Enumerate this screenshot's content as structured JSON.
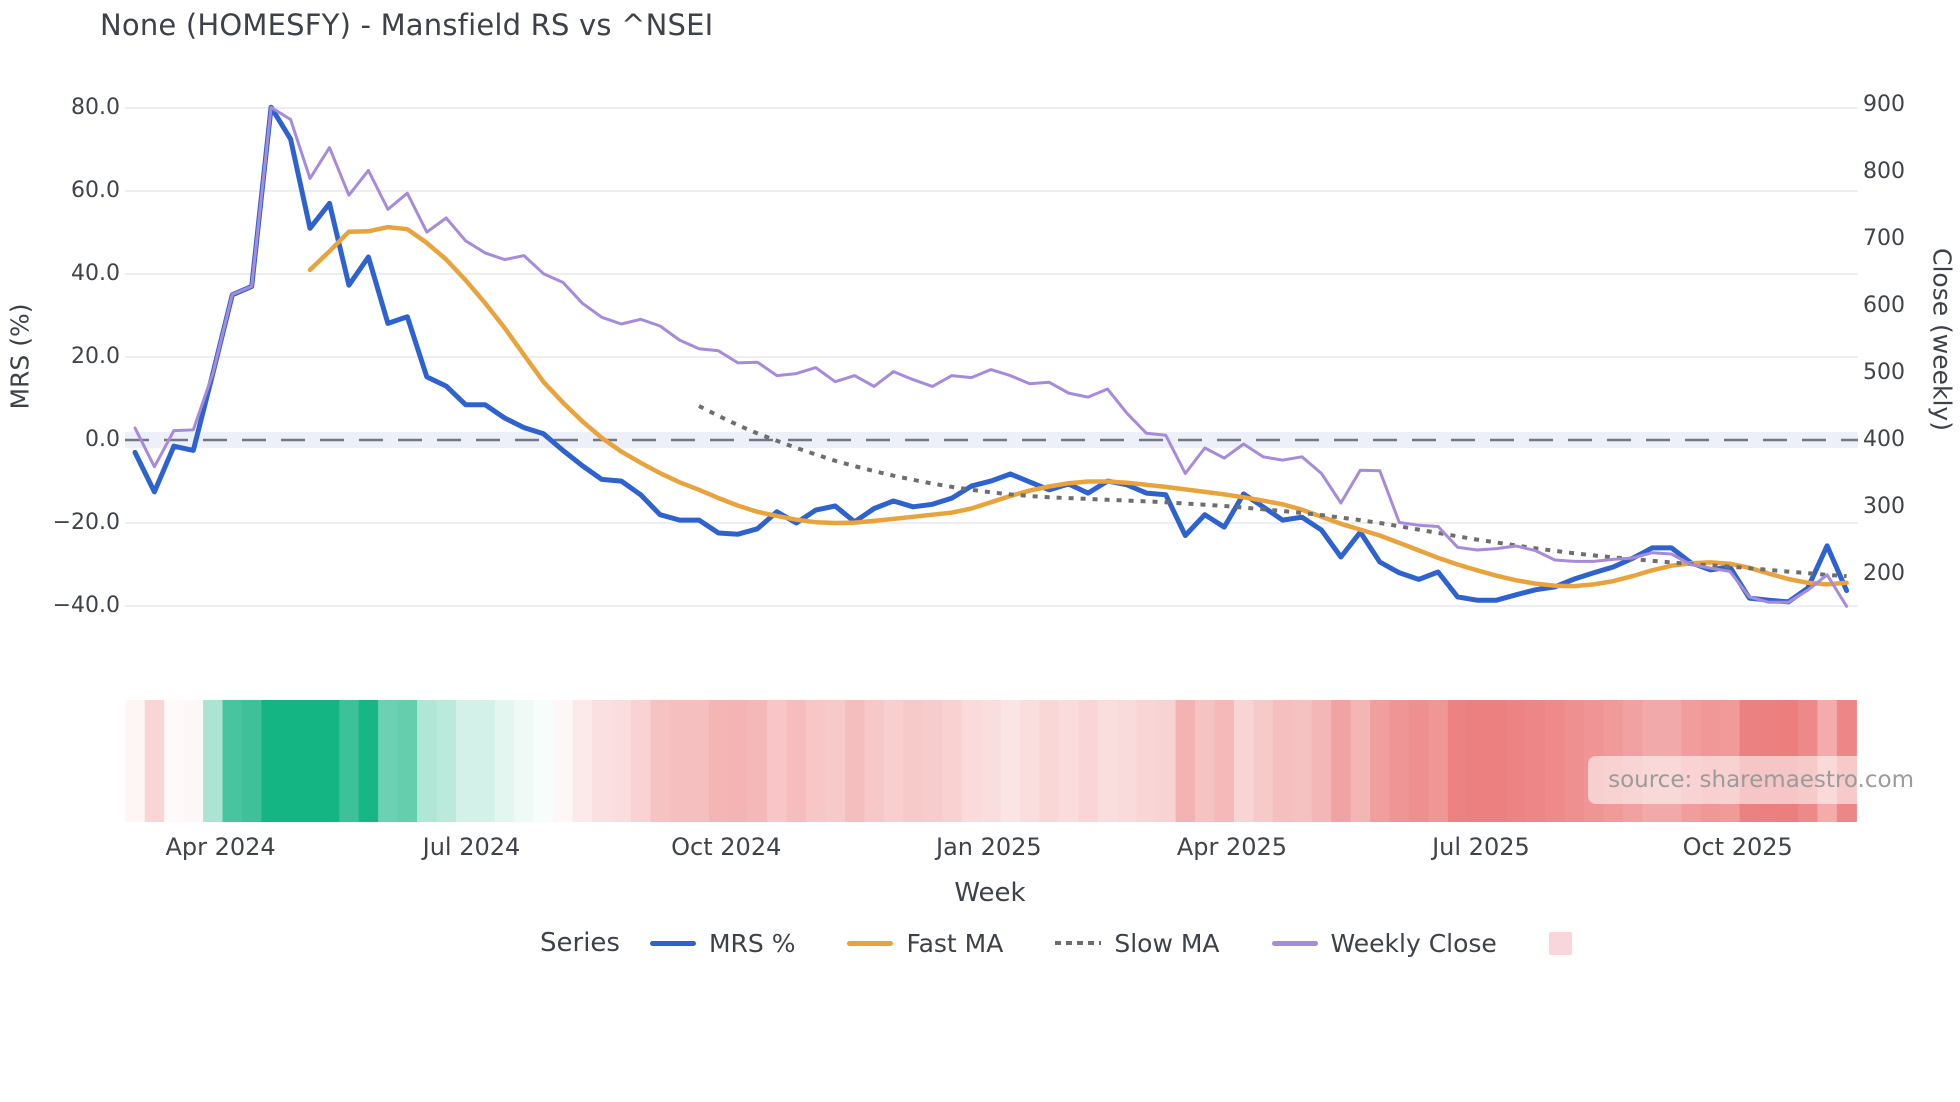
{
  "title": "None (HOMESFY) - Mansfield RS vs ^NSEI",
  "source": "source: sharemaestro.com",
  "axes": {
    "left_label": "MRS (%)",
    "right_label": "Close (weekly)",
    "x_label": "Week",
    "left_ticks": [
      "80.0",
      "60.0",
      "40.0",
      "20.0",
      "0.0",
      "−20.0",
      "−40.0"
    ],
    "left_tick_values": [
      80,
      60,
      40,
      20,
      0,
      -20,
      -40
    ],
    "right_ticks": [
      "900",
      "800",
      "700",
      "600",
      "500",
      "400",
      "300",
      "200"
    ],
    "right_tick_values": [
      900,
      800,
      700,
      600,
      500,
      400,
      300,
      200
    ],
    "x_ticks": [
      {
        "label": "Apr 2024",
        "week": 4.4
      },
      {
        "label": "Jul 2024",
        "week": 17.3
      },
      {
        "label": "Oct 2024",
        "week": 30.4
      },
      {
        "label": "Jan 2025",
        "week": 43.9
      },
      {
        "label": "Apr 2025",
        "week": 56.4
      },
      {
        "label": "Jul 2025",
        "week": 69.2
      },
      {
        "label": "Oct 2025",
        "week": 82.4
      }
    ]
  },
  "legend": {
    "heading": "Series",
    "items": [
      {
        "label": "MRS %",
        "color": "#2e62cf",
        "style": "line"
      },
      {
        "label": "Fast MA",
        "color": "#e8a33c",
        "style": "line"
      },
      {
        "label": "Slow MA",
        "color": "#6e6e6e",
        "style": "dotted"
      },
      {
        "label": "Weekly Close",
        "color": "#a78bdb",
        "style": "line"
      },
      {
        "label": "",
        "color": "#f9d6da",
        "style": "square"
      }
    ]
  },
  "colors": {
    "grid": "#ededf2",
    "zero_line": "#707886",
    "zero_band": "#e9ebf7",
    "heat_positive": "#14b483",
    "heat_negative": "#e96a6a",
    "title_text": "#3d4149",
    "tick_text": "#3f434a"
  },
  "chart_data": {
    "type": "line",
    "x_unit": "week index (weekly data, ~Mar 2024 to ~Nov 2025)",
    "n_weeks": 89,
    "ylim_left": [
      -40,
      80
    ],
    "ylim_right": [
      200,
      900
    ],
    "zero_reference_left": 0,
    "grid": "horizontal-only",
    "legend_position": "bottom",
    "series": [
      {
        "name": "MRS %",
        "axis": "left",
        "color": "#2e62cf",
        "width": 5,
        "style": "solid",
        "values": [
          -3,
          -12.5,
          -1.5,
          -2.5,
          16,
          35,
          37,
          80.2,
          72.5,
          51,
          57,
          37.3,
          44.1,
          28.1,
          29.7,
          15.2,
          13,
          8.5,
          8.5,
          5.3,
          3,
          1.5,
          -2.5,
          -6.2,
          -9.5,
          -9.9,
          -13.2,
          -18,
          -19.3,
          -19.3,
          -22.4,
          -22.7,
          -21.4,
          -17.3,
          -20,
          -16.9,
          -15.9,
          -19.7,
          -16.5,
          -14.7,
          -16.1,
          -15.5,
          -14,
          -11.1,
          -9.9,
          -8.2,
          -10.1,
          -12,
          -10.6,
          -12.8,
          -9.9,
          -10.8,
          -12.8,
          -13.2,
          -23,
          -18,
          -21,
          -13,
          -16.1,
          -19.3,
          -18.6,
          -21.7,
          -28.2,
          -22.2,
          -29.4,
          -32,
          -33.6,
          -31.8,
          -37.8,
          -38.6,
          -38.6,
          -37.3,
          -36.1,
          -35.4,
          -33.5,
          -32,
          -30.6,
          -28.5,
          -26,
          -26,
          -29.6,
          -31.3,
          -30.6,
          -38.1,
          -38.6,
          -39,
          -35.7,
          -25.5,
          -36.3
        ]
      },
      {
        "name": "Fast MA",
        "axis": "left",
        "color": "#e8a33c",
        "width": 4.5,
        "style": "solid",
        "values": [
          null,
          null,
          null,
          null,
          null,
          null,
          null,
          null,
          null,
          41,
          45.5,
          50.2,
          50.3,
          51.3,
          50.8,
          47.5,
          43.5,
          38.5,
          33,
          27,
          20.5,
          14,
          9,
          4.5,
          0.5,
          -2.8,
          -5.5,
          -8,
          -10.2,
          -12,
          -14,
          -15.8,
          -17.3,
          -18.3,
          -19.2,
          -19.8,
          -20,
          -19.9,
          -19.5,
          -19,
          -18.5,
          -18,
          -17.5,
          -16.5,
          -15,
          -13.5,
          -12.2,
          -11.2,
          -10.4,
          -10,
          -10,
          -10.3,
          -10.8,
          -11.3,
          -11.9,
          -12.5,
          -13.1,
          -13.8,
          -14.6,
          -15.5,
          -16.8,
          -18.5,
          -20.2,
          -21.6,
          -23,
          -24.8,
          -26.6,
          -28.4,
          -30,
          -31.4,
          -32.7,
          -33.8,
          -34.6,
          -35.1,
          -35.2,
          -34.8,
          -34,
          -32.8,
          -31.4,
          -30.3,
          -29.7,
          -29.5,
          -29.8,
          -30.8,
          -32.2,
          -33.5,
          -34.4,
          -34.8,
          -34.4
        ]
      },
      {
        "name": "Slow MA",
        "axis": "left",
        "color": "#6e6e6e",
        "width": 4,
        "style": "dotted",
        "values": [
          null,
          null,
          null,
          null,
          null,
          null,
          null,
          null,
          null,
          null,
          null,
          null,
          null,
          null,
          null,
          null,
          null,
          null,
          null,
          null,
          null,
          null,
          null,
          null,
          null,
          null,
          null,
          null,
          null,
          8.2,
          5.8,
          3.6,
          1.6,
          -0.2,
          -1.9,
          -3.5,
          -5,
          -6.3,
          -7.5,
          -8.6,
          -9.6,
          -10.5,
          -11.3,
          -12,
          -12.6,
          -13.1,
          -13.5,
          -13.8,
          -14,
          -14.2,
          -14.4,
          -14.6,
          -14.8,
          -15,
          -15.3,
          -15.6,
          -15.9,
          -16.3,
          -16.7,
          -17.1,
          -17.6,
          -18.1,
          -18.7,
          -19.3,
          -20,
          -20.8,
          -21.6,
          -22.4,
          -23.2,
          -24,
          -24.7,
          -25.4,
          -26.1,
          -26.7,
          -27.3,
          -27.8,
          -28.3,
          -28.7,
          -29.1,
          -29.5,
          -29.9,
          -30.2,
          -30.5,
          -30.9,
          -31.3,
          -31.7,
          -32.1,
          -32.5,
          -32.8
        ]
      },
      {
        "name": "Weekly Close",
        "axis": "right",
        "color": "#a78bdb",
        "width": 3,
        "style": "solid",
        "values": [
          418,
          360,
          414,
          415,
          499,
          617,
          629,
          896,
          878,
          790,
          836,
          765,
          802,
          744,
          768,
          710,
          731,
          697,
          679,
          669,
          675,
          648,
          635,
          604,
          583,
          573,
          580,
          570,
          549,
          536,
          533,
          515,
          516,
          496,
          499,
          508,
          487,
          496,
          480,
          502,
          490,
          480,
          496,
          493,
          505,
          496,
          484,
          486,
          470,
          464,
          476,
          440,
          410,
          407,
          350,
          388,
          373,
          394,
          375,
          370,
          375,
          350,
          306,
          355,
          354,
          277,
          273,
          271,
          240,
          236,
          238,
          242,
          235,
          221,
          219,
          219,
          222,
          224,
          232,
          230,
          214,
          209,
          204,
          166,
          158,
          158,
          176,
          199,
          152
        ]
      }
    ],
    "heat_strip": {
      "description": "weekly heat band under chart; green intensity = positive MRS %, red intensity = negative MRS %",
      "derived_from": "MRS %",
      "positive_color": "#14b483",
      "negative_color": "#e96a6a"
    }
  }
}
